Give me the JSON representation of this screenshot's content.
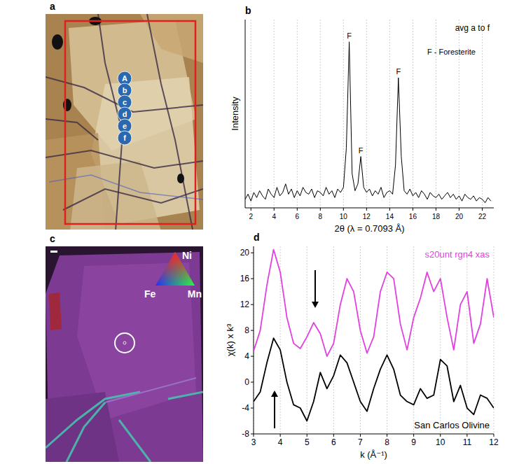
{
  "chart_data": [
    {
      "panel": "b",
      "type": "line",
      "x_label": "2θ (λ = 0.7093 Å)",
      "y_label": "Intensity",
      "xlim": [
        1.5,
        23
      ],
      "ylim": [
        0,
        1.1
      ],
      "xticks": [
        2,
        4,
        6,
        8,
        10,
        12,
        14,
        16,
        18,
        20,
        22
      ],
      "tick_labels": "x",
      "grid": true,
      "annotation": "F - Foresterite",
      "peak_labels": [
        {
          "text": "F",
          "x": 10.5,
          "y": 0.97
        },
        {
          "text": "F",
          "x": 11.5,
          "y": 0.3
        },
        {
          "text": "F",
          "x": 14.75,
          "y": 0.76
        }
      ],
      "x": [
        1.5,
        1.75,
        2,
        2.25,
        2.5,
        2.75,
        3,
        3.25,
        3.5,
        3.75,
        4,
        4.25,
        4.5,
        4.75,
        5,
        5.25,
        5.5,
        5.75,
        6,
        6.25,
        6.5,
        6.75,
        7,
        7.25,
        7.5,
        7.75,
        8,
        8.25,
        8.5,
        8.75,
        9,
        9.25,
        9.5,
        9.75,
        10,
        10.25,
        10.5,
        10.75,
        11,
        11.25,
        11.5,
        11.75,
        12,
        12.25,
        12.5,
        12.75,
        13,
        13.25,
        13.5,
        13.75,
        14,
        14.25,
        14.5,
        14.75,
        15,
        15.25,
        15.5,
        15.75,
        16,
        16.25,
        16.5,
        16.75,
        17,
        17.25,
        17.5,
        17.75,
        18,
        18.25,
        18.5,
        18.75,
        19,
        19.25,
        19.5,
        19.75,
        20,
        20.25,
        20.5,
        20.75,
        21,
        21.25,
        21.5,
        21.75,
        22,
        22.25,
        22.5,
        22.75
      ],
      "series": [
        {
          "name": "avg a to f",
          "color": "#000000",
          "values": [
            0.05,
            0.08,
            0.04,
            0.09,
            0.06,
            0.1,
            0.07,
            0.05,
            0.11,
            0.08,
            0.06,
            0.12,
            0.07,
            0.09,
            0.14,
            0.08,
            0.11,
            0.06,
            0.1,
            0.07,
            0.12,
            0.09,
            0.08,
            0.11,
            0.06,
            0.1,
            0.09,
            0.07,
            0.12,
            0.08,
            0.1,
            0.06,
            0.11,
            0.09,
            0.12,
            0.35,
            0.97,
            0.2,
            0.1,
            0.14,
            0.3,
            0.12,
            0.09,
            0.11,
            0.07,
            0.1,
            0.08,
            0.12,
            0.06,
            0.09,
            0.1,
            0.08,
            0.25,
            0.76,
            0.3,
            0.1,
            0.08,
            0.11,
            0.07,
            0.09,
            0.06,
            0.1,
            0.08,
            0.05,
            0.09,
            0.07,
            0.06,
            0.08,
            0.05,
            0.07,
            0.09,
            0.06,
            0.08,
            0.05,
            0.07,
            0.04,
            0.08,
            0.06,
            0.05,
            0.07,
            0.04,
            0.06,
            0.05,
            0.03,
            0.06,
            0.04
          ]
        }
      ]
    },
    {
      "panel": "d",
      "type": "line",
      "x_label": "k (Å⁻¹)",
      "y_label": "χ(k) x k³",
      "xlim": [
        3,
        12
      ],
      "ylim": [
        -8,
        21
      ],
      "xticks": [
        3,
        4,
        5,
        6,
        7,
        8,
        9,
        10,
        11,
        12
      ],
      "yticks": [
        -8,
        -4,
        0,
        4,
        8,
        12,
        16,
        20
      ],
      "grid": true,
      "x": [
        3,
        3.25,
        3.5,
        3.75,
        4,
        4.25,
        4.5,
        4.75,
        5,
        5.25,
        5.5,
        5.75,
        6,
        6.25,
        6.5,
        6.75,
        7,
        7.25,
        7.5,
        7.75,
        8,
        8.25,
        8.5,
        8.75,
        9,
        9.25,
        9.5,
        9.75,
        10,
        10.25,
        10.5,
        10.75,
        11,
        11.25,
        11.5,
        11.75,
        12
      ],
      "series": [
        {
          "name": "s20unt rgn4 xas",
          "color": "#e23fe0",
          "values": [
            4.8,
            8,
            15,
            20.5,
            17,
            10,
            6,
            5.2,
            7,
            9.2,
            7.5,
            4,
            6,
            12,
            16,
            14,
            8,
            4.5,
            7,
            14,
            17,
            16,
            9,
            5,
            10,
            13,
            17,
            14,
            16,
            10,
            5,
            12,
            14,
            6,
            9,
            16,
            10
          ]
        },
        {
          "name": "San Carlos Olivine",
          "color": "#000000",
          "values": [
            -3,
            -1.5,
            3,
            6.8,
            5,
            0,
            -3.5,
            -4,
            -6,
            -3,
            1.5,
            -1,
            1,
            4.2,
            3,
            0,
            -3,
            -4.5,
            -1,
            2,
            4.2,
            2,
            -2,
            -3,
            -3.5,
            -1,
            -2.5,
            -2,
            3.5,
            2.5,
            -3,
            -0.5,
            -4,
            -5,
            -2,
            -2.5,
            -4
          ]
        }
      ]
    }
  ],
  "images": [
    {
      "panel": "a",
      "points": [
        "A",
        "b",
        "c",
        "d",
        "e",
        "f"
      ]
    },
    {
      "panel": "c",
      "color_key": [
        "Ni",
        "Fe",
        "Mn"
      ]
    }
  ]
}
